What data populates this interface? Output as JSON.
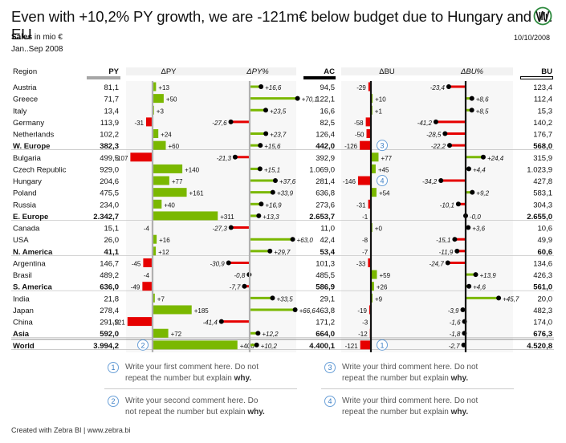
{
  "header": {
    "title": "Even with +10,2% PY growth, we are -121m€ below budget due to Hungary and W. EU",
    "measure_bold": "Sales",
    "measure_rest": " in mio €",
    "period": "Jan..Sep 2008",
    "date": "10/10/2008"
  },
  "footer": "Created with Zebra BI | www.zebra.bi",
  "comments": [
    {
      "num": "1",
      "text": "Write your first comment here. Do not repeat the number but explain ",
      "bold": "why."
    },
    {
      "num": "2",
      "text": "Write your second comment here. Do not repeat the number but explain ",
      "bold": "why."
    },
    {
      "num": "3",
      "text": "Write your third comment here. Do not repeat the number but explain ",
      "bold": "why."
    },
    {
      "num": "4",
      "text": "Write your third comment here. Do not repeat the number but explain ",
      "bold": "why."
    }
  ],
  "colors": {
    "positive": "#7ab800",
    "negative": "#e60000",
    "ac": "#000000",
    "py": "#a6a6a6"
  },
  "chart_data": {
    "type": "table",
    "columns": {
      "region": "Region",
      "py": "PY",
      "dpy": "ΔPY",
      "dpyp": "ΔPY%",
      "ac": "AC",
      "dbu": "ΔBU",
      "dbup": "ΔBU%",
      "bu": "BU"
    },
    "rows": [
      {
        "region": "Austria",
        "py": "81,1",
        "dpy": 13,
        "dpyL": "+13",
        "dpyp": 16.6,
        "dpypL": "+16,6",
        "ac": "94,5",
        "dbu": -29,
        "dbuL": "-29",
        "dbup": -23.4,
        "dbupL": "-23,4",
        "bu": "123,4"
      },
      {
        "region": "Greece",
        "py": "71,7",
        "dpy": 50,
        "dpyL": "+50",
        "dpyp": 70.1,
        "dpypL": "+70,1",
        "ac": "122,1",
        "dbu": 10,
        "dbuL": "+10",
        "dbup": 8.6,
        "dbupL": "+8,6",
        "bu": "112,4"
      },
      {
        "region": "Italy",
        "py": "13,4",
        "dpy": 3,
        "dpyL": "+3",
        "dpyp": 23.5,
        "dpypL": "+23,5",
        "ac": "16,6",
        "dbu": 1,
        "dbuL": "+1",
        "dbup": 8.5,
        "dbupL": "+8,5",
        "bu": "15,3"
      },
      {
        "region": "Germany",
        "py": "113,9",
        "dpy": -31,
        "dpyL": "-31",
        "dpyp": -27.6,
        "dpypL": "-27,6",
        "ac": "82,5",
        "dbu": -58,
        "dbuL": "-58",
        "dbup": -41.2,
        "dbupL": "-41,2",
        "bu": "140,2"
      },
      {
        "region": "Netherlands",
        "py": "102,2",
        "dpy": 24,
        "dpyL": "+24",
        "dpyp": 23.7,
        "dpypL": "+23,7",
        "ac": "126,4",
        "dbu": -50,
        "dbuL": "-50",
        "dbup": -28.5,
        "dbupL": "-28,5",
        "bu": "176,7"
      },
      {
        "region": "W. Europe",
        "bold": true,
        "py": "382,3",
        "dpy": 60,
        "dpyL": "+60",
        "dpyp": 15.6,
        "dpypL": "+15,6",
        "ac": "442,0",
        "dbu": -126,
        "dbuL": "-126",
        "dbup": -22.2,
        "dbupL": "-22,2",
        "bu": "568,0",
        "callout": "3"
      },
      {
        "region": "Bulgaria",
        "py": "499,5",
        "dpy": -107,
        "dpyL": "-107",
        "dpyp": -21.3,
        "dpypL": "-21,3",
        "ac": "392,9",
        "dbu": 77,
        "dbuL": "+77",
        "dbup": 24.4,
        "dbupL": "+24,4",
        "bu": "315,9"
      },
      {
        "region": "Czech Republic",
        "py": "929,0",
        "dpy": 140,
        "dpyL": "+140",
        "dpyp": 15.1,
        "dpypL": "+15,1",
        "ac": "1.069,0",
        "dbu": 45,
        "dbuL": "+45",
        "dbup": 4.4,
        "dbupL": "+4,4",
        "bu": "1.023,9"
      },
      {
        "region": "Hungary",
        "py": "204,6",
        "dpy": 77,
        "dpyL": "+77",
        "dpyp": 37.6,
        "dpypL": "+37,6",
        "ac": "281,4",
        "dbu": -146,
        "dbuL": "-146",
        "dbup": -34.2,
        "dbupL": "-34,2",
        "bu": "427,8",
        "callout": "4"
      },
      {
        "region": "Poland",
        "py": "475,5",
        "dpy": 161,
        "dpyL": "+161",
        "dpyp": 33.9,
        "dpypL": "+33,9",
        "ac": "636,8",
        "dbu": 54,
        "dbuL": "+54",
        "dbup": 9.2,
        "dbupL": "+9,2",
        "bu": "583,1"
      },
      {
        "region": "Russia",
        "py": "234,0",
        "dpy": 40,
        "dpyL": "+40",
        "dpyp": 16.9,
        "dpypL": "+16,9",
        "ac": "273,6",
        "dbu": -31,
        "dbuL": "-31",
        "dbup": -10.1,
        "dbupL": "-10,1",
        "bu": "304,3"
      },
      {
        "region": "E. Europe",
        "bold": true,
        "py": "2.342,7",
        "dpy": 311,
        "dpyL": "+311",
        "dpyp": 13.3,
        "dpypL": "+13,3",
        "ac": "2.653,7",
        "dbu": -1,
        "dbuL": "-1",
        "dbup": 0,
        "dbupL": "-0,0",
        "bu": "2.655,0"
      },
      {
        "region": "Canada",
        "py": "15,1",
        "dpy": -4,
        "dpyL": "-4",
        "dpyp": -27.3,
        "dpypL": "-27,3",
        "ac": "11,0",
        "dbu": 0,
        "dbuL": "+0",
        "dbup": 3.6,
        "dbupL": "+3,6",
        "bu": "10,6"
      },
      {
        "region": "USA",
        "py": "26,0",
        "dpy": 16,
        "dpyL": "+16",
        "dpyp": 63.0,
        "dpypL": "+63,0",
        "ac": "42,4",
        "dbu": -8,
        "dbuL": "-8",
        "dbup": -15.1,
        "dbupL": "-15,1",
        "bu": "49,9"
      },
      {
        "region": "N. America",
        "bold": true,
        "py": "41,1",
        "dpy": 12,
        "dpyL": "+12",
        "dpyp": 29.7,
        "dpypL": "+29,7",
        "ac": "53,4",
        "dbu": -7,
        "dbuL": "-7",
        "dbup": -11.9,
        "dbupL": "-11,9",
        "bu": "60,6"
      },
      {
        "region": "Argentina",
        "py": "146,7",
        "dpy": -45,
        "dpyL": "-45",
        "dpyp": -30.9,
        "dpypL": "-30,9",
        "ac": "101,3",
        "dbu": -33,
        "dbuL": "-33",
        "dbup": -24.7,
        "dbupL": "-24,7",
        "bu": "134,6"
      },
      {
        "region": "Brasil",
        "py": "489,2",
        "dpy": -4,
        "dpyL": "-4",
        "dpyp": -0.8,
        "dpypL": "-0,8",
        "ac": "485,5",
        "dbu": 59,
        "dbuL": "+59",
        "dbup": 13.9,
        "dbupL": "+13,9",
        "bu": "426,3"
      },
      {
        "region": "S. America",
        "bold": true,
        "py": "636,0",
        "dpy": -49,
        "dpyL": "-49",
        "dpyp": -7.7,
        "dpypL": "-7,7",
        "ac": "586,9",
        "dbu": 26,
        "dbuL": "+26",
        "dbup": 4.6,
        "dbupL": "+4,6",
        "bu": "561,0"
      },
      {
        "region": "India",
        "py": "21,8",
        "dpy": 7,
        "dpyL": "+7",
        "dpyp": 33.5,
        "dpypL": "+33,5",
        "ac": "29,1",
        "dbu": 9,
        "dbuL": "+9",
        "dbup": 45.7,
        "dbupL": "+45,7",
        "bu": "20,0"
      },
      {
        "region": "Japan",
        "py": "278,4",
        "dpy": 185,
        "dpyL": "+185",
        "dpyp": 66.6,
        "dpypL": "+66,6",
        "ac": "463,8",
        "dbu": -19,
        "dbuL": "-19",
        "dbup": -3.9,
        "dbupL": "-3,9",
        "bu": "482,3"
      },
      {
        "region": "China",
        "py": "291,9",
        "dpy": -121,
        "dpyL": "-121",
        "dpyp": -41.4,
        "dpypL": "-41,4",
        "ac": "171,2",
        "dbu": -3,
        "dbuL": "-3",
        "dbup": -1.6,
        "dbupL": "-1,6",
        "bu": "174,0"
      },
      {
        "region": "Asia",
        "bold": true,
        "py": "592,0",
        "dpy": 72,
        "dpyL": "+72",
        "dpyp": 12.2,
        "dpypL": "+12,2",
        "ac": "664,0",
        "dbu": -12,
        "dbuL": "-12",
        "dbup": -1.8,
        "dbupL": "-1,8",
        "bu": "676,3"
      },
      {
        "region": "World",
        "bold": true,
        "total": true,
        "py": "3.994,2",
        "dpy": 406,
        "dpyL": "+406",
        "dpyp": 10.2,
        "dpypL": "+10,2",
        "ac": "4.400,1",
        "dbu": -121,
        "dbuL": "-121",
        "dbup": -2.7,
        "dbupL": "-2,7",
        "bu": "4.520,8",
        "calloutDpy": "2",
        "calloutDbu": "1"
      }
    ]
  }
}
